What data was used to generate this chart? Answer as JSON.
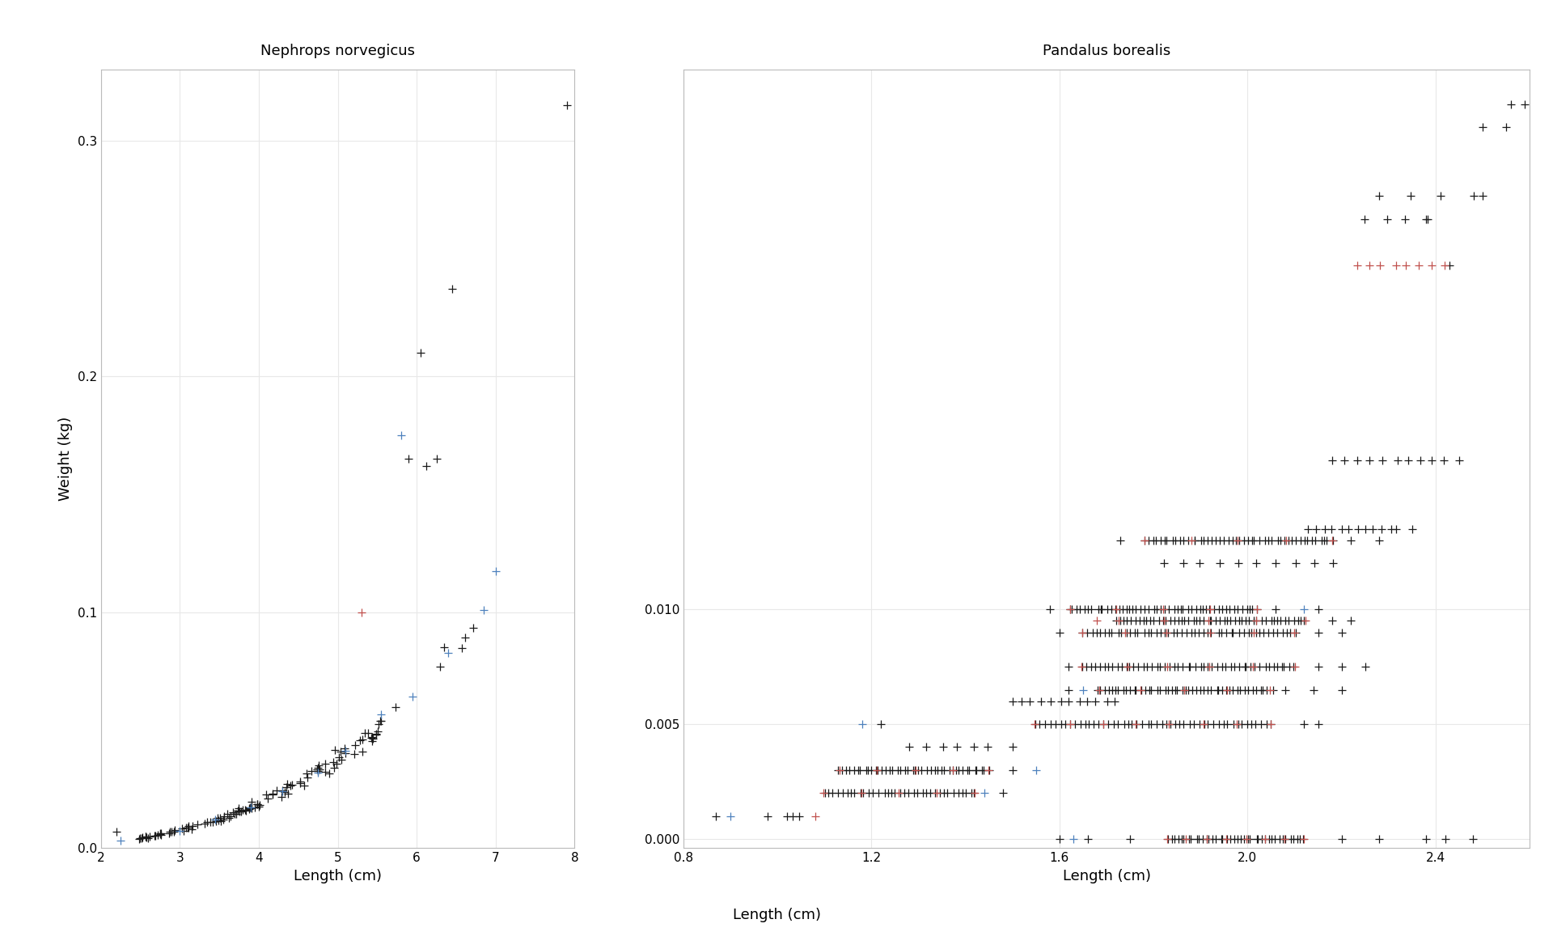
{
  "left_title": "Nephrops norvegicus",
  "right_title": "Pandalus borealis",
  "xlabel": "Length (cm)",
  "ylabel": "Weight (kg)",
  "left_xlim": [
    2,
    8
  ],
  "left_ylim": [
    0,
    0.33
  ],
  "right_xlim": [
    0.8,
    2.6
  ],
  "right_ylim": [
    -0.0004,
    0.0335
  ],
  "left_xticks": [
    2,
    3,
    4,
    5,
    6,
    7,
    8
  ],
  "left_yticks": [
    0.0,
    0.1,
    0.2,
    0.3
  ],
  "right_xticks": [
    0.8,
    1.2,
    1.6,
    2.0,
    2.4
  ],
  "right_yticks": [
    0.0,
    0.005,
    0.01
  ],
  "background_color": "#ffffff",
  "strip_background": "#d9d9d9",
  "grid_color": "#e8e8e8",
  "default_color": "#1a1a1a",
  "blue_color": "#4e81bd",
  "orange_color": "#c0504d",
  "red_color": "#c0504d"
}
